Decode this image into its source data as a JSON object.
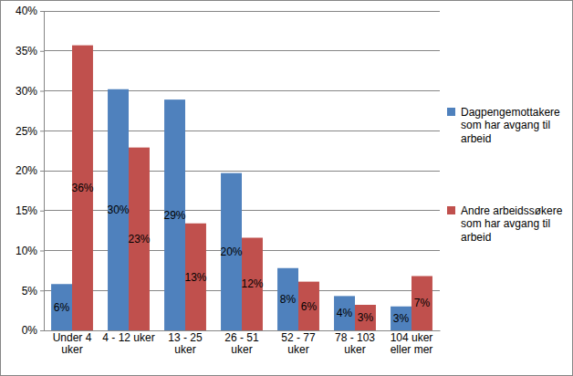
{
  "chart_data": {
    "type": "bar",
    "categories": [
      "Under 4 uker",
      "4 - 12 uker",
      "13 - 25 uker",
      "26 - 51 uker",
      "52 - 77 uker",
      "78 - 103 uker",
      "104 uker eller mer"
    ],
    "series": [
      {
        "name": "Dagpengemottakere som har avgang til arbeid",
        "color": "#4f81bd",
        "values": [
          5.8,
          30.2,
          28.9,
          19.7,
          7.8,
          4.3,
          3.0
        ],
        "value_labels": [
          "6%",
          "30%",
          "29%",
          "20%",
          "8%",
          "4%",
          "3%"
        ]
      },
      {
        "name": "Andre arbeidssøkere som har avgang til arbeid",
        "color": "#c0504d",
        "values": [
          35.7,
          22.9,
          13.4,
          11.6,
          6.1,
          3.2,
          6.8
        ],
        "value_labels": [
          "36%",
          "23%",
          "13%",
          "12%",
          "6%",
          "3%",
          "7%"
        ]
      }
    ],
    "ylim": [
      0,
      40
    ],
    "yticks": [
      {
        "value": 0,
        "label": "0%"
      },
      {
        "value": 5,
        "label": "5%"
      },
      {
        "value": 10,
        "label": "10%"
      },
      {
        "value": 15,
        "label": "15%"
      },
      {
        "value": 20,
        "label": "20%"
      },
      {
        "value": 25,
        "label": "25%"
      },
      {
        "value": 30,
        "label": "30%"
      },
      {
        "value": 35,
        "label": "35%"
      },
      {
        "value": 40,
        "label": "40%"
      }
    ],
    "grid": true,
    "legend": "right",
    "data_labels": true
  }
}
